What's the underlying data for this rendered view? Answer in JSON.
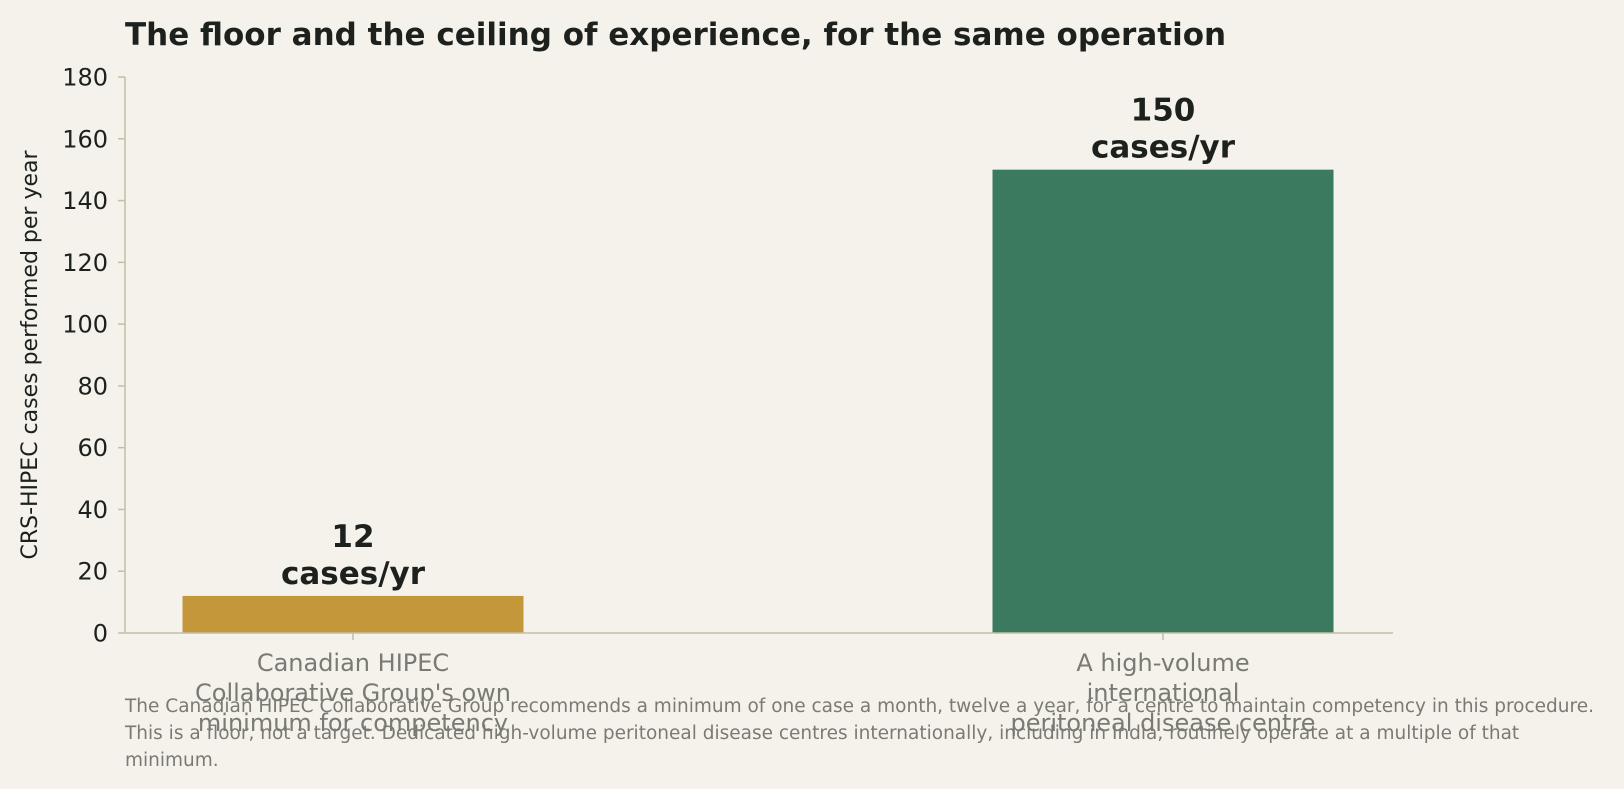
{
  "chart_data": {
    "type": "bar",
    "title": "The floor and the ceiling of experience, for the same operation",
    "ylabel": "CRS-HIPEC cases performed per year",
    "xlabel": "",
    "ylim": [
      0,
      180
    ],
    "yticks": [
      0,
      20,
      40,
      60,
      80,
      100,
      120,
      140,
      160,
      180
    ],
    "categories": [
      [
        "Canadian HIPEC",
        "Collaborative Group's own",
        "minimum for competency"
      ],
      [
        "A high-volume",
        "international",
        "peritoneal disease centre"
      ]
    ],
    "values": [
      12,
      150
    ],
    "value_labels": [
      [
        "12",
        "cases/yr"
      ],
      [
        "150",
        "cases/yr"
      ]
    ],
    "colors": [
      "#c4973b",
      "#3b7a5e"
    ],
    "grid": false,
    "legend": "none"
  },
  "footnote": "The Canadian HIPEC Collaborative Group recommends a minimum of one case a month, twelve a year, for a centre to maintain competency in this procedure. This is a floor, not a target. Dedicated high-volume peritoneal disease centres internationally, including in India, routinely operate at a multiple of that minimum.",
  "style": {
    "background": "#f5f2ec",
    "axis_color": "#c4bea8",
    "text_dark": "#1d211e",
    "text_muted": "#7a7a72"
  }
}
